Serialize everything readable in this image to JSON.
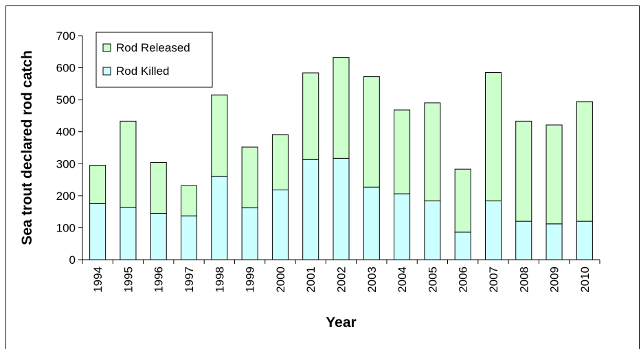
{
  "chart_data": {
    "type": "bar",
    "stacked": true,
    "title": "",
    "xlabel": "Year",
    "ylabel": "Sea trout declared rod catch",
    "ylim": [
      0,
      700
    ],
    "yticks": [
      0,
      100,
      200,
      300,
      400,
      500,
      600,
      700
    ],
    "grid": false,
    "legend_position": "top-left",
    "categories": [
      "1994",
      "1995",
      "1996",
      "1997",
      "1998",
      "1999",
      "2000",
      "2001",
      "2002",
      "2003",
      "2004",
      "2005",
      "2006",
      "2007",
      "2008",
      "2009",
      "2010"
    ],
    "series": [
      {
        "name": "Rod Killed",
        "color": "#ccffff",
        "values": [
          175,
          163,
          145,
          137,
          261,
          162,
          218,
          313,
          317,
          227,
          206,
          184,
          86,
          184,
          120,
          112,
          120
        ]
      },
      {
        "name": "Rod Released",
        "color": "#ccffcc",
        "values": [
          120,
          270,
          159,
          94,
          254,
          190,
          173,
          271,
          315,
          345,
          262,
          306,
          197,
          401,
          313,
          309,
          374
        ]
      }
    ],
    "legend_order": [
      "Rod Released",
      "Rod Killed"
    ]
  }
}
